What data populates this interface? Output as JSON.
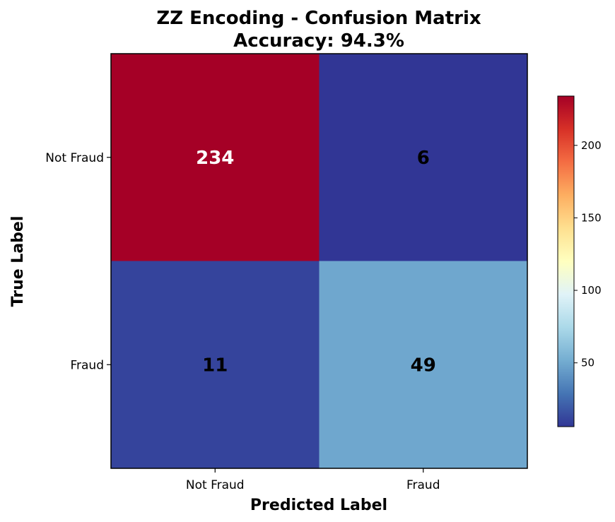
{
  "chart_data": {
    "type": "heatmap",
    "title": "ZZ Encoding - Confusion Matrix",
    "subtitle": "Accuracy: 94.3%",
    "xlabel": "Predicted Label",
    "ylabel": "True Label",
    "x_categories": [
      "Not Fraud",
      "Fraud"
    ],
    "y_categories": [
      "Not Fraud",
      "Fraud"
    ],
    "values": [
      [
        234,
        6
      ],
      [
        11,
        49
      ]
    ],
    "colormap": "RdYlBu_r",
    "colorbar": {
      "min": 6,
      "max": 234,
      "ticks": [
        "50",
        "100",
        "150",
        "200"
      ],
      "tick_values": [
        50,
        100,
        150,
        200
      ]
    },
    "grid": false
  }
}
